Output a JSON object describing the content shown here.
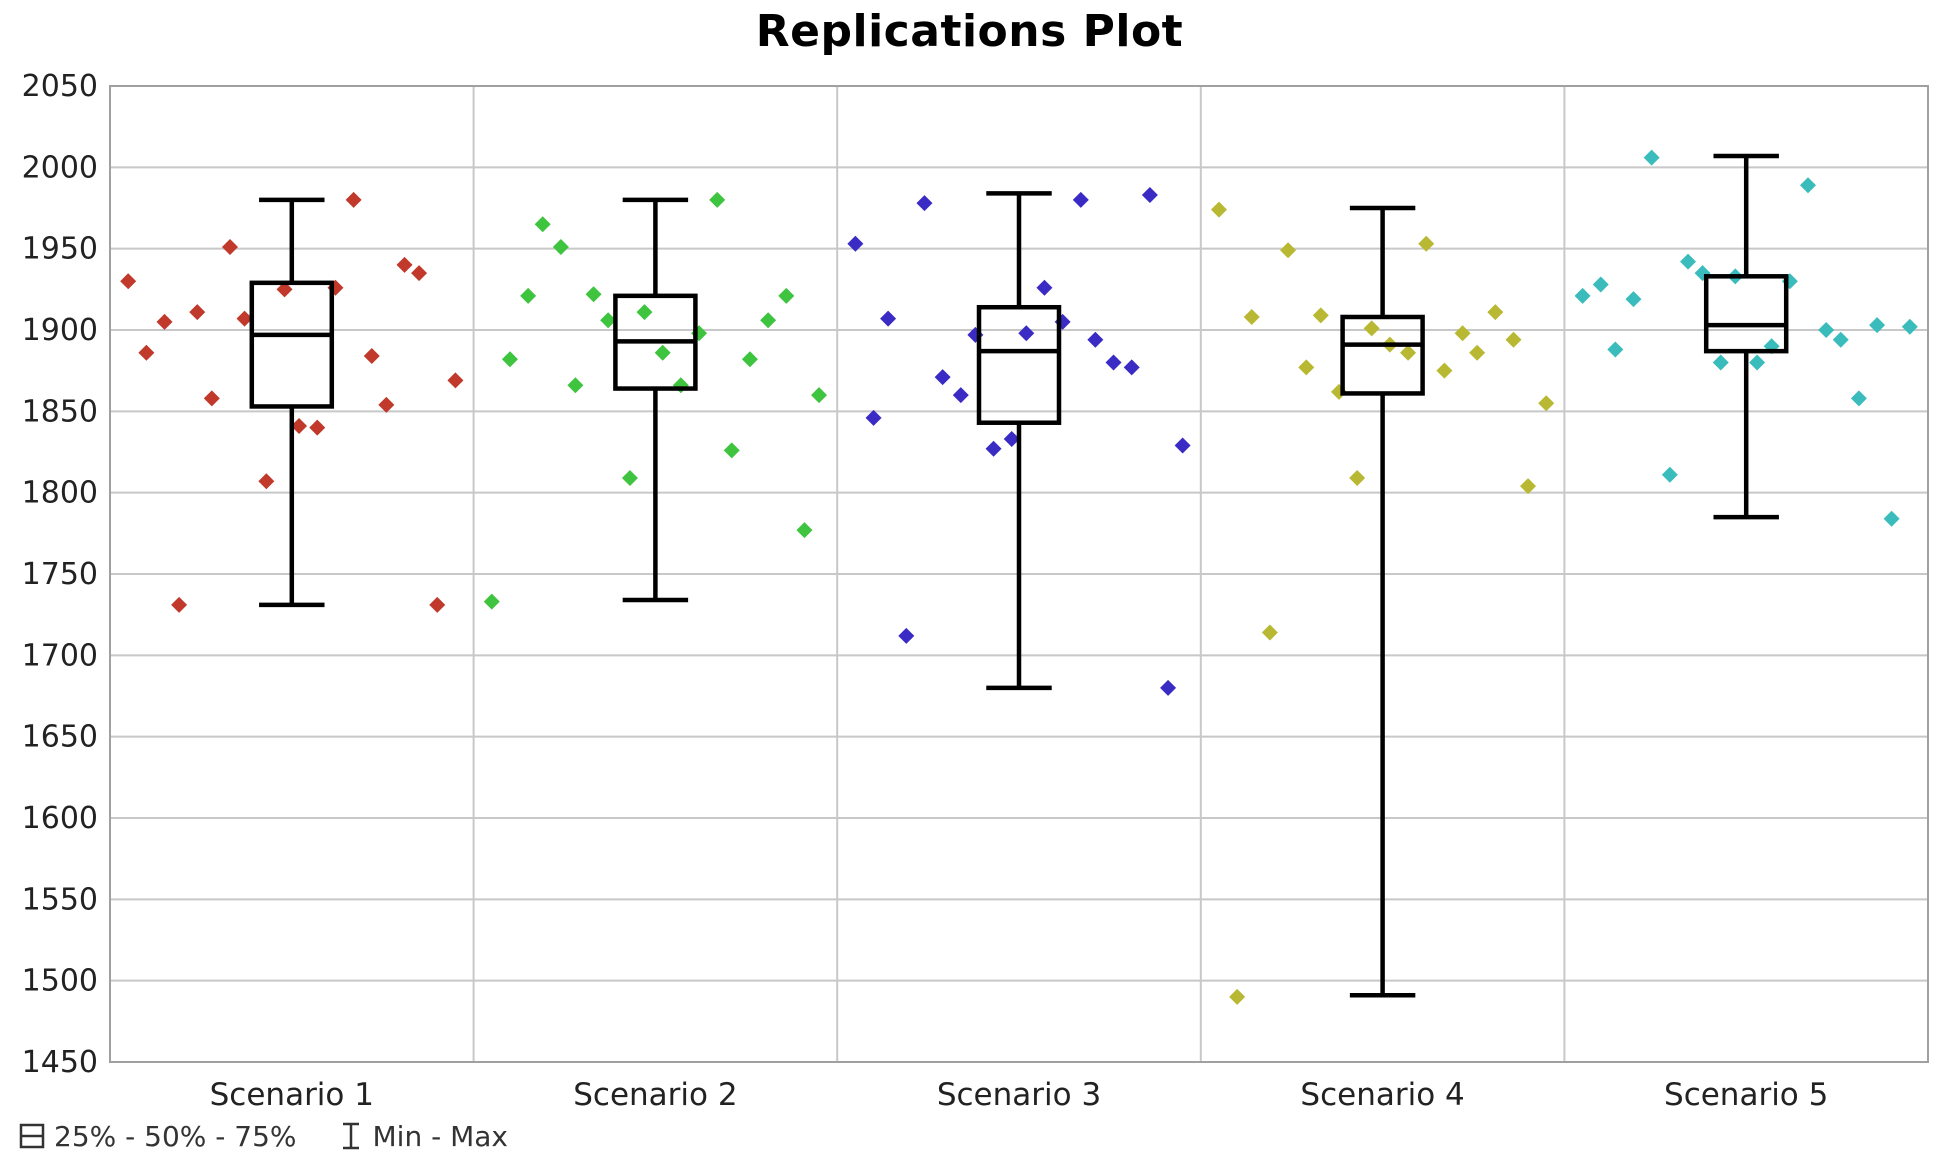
{
  "chart_data": {
    "type": "box",
    "title": "Replications Plot",
    "ylim": [
      1450,
      2050
    ],
    "yticks": [
      "1450",
      "1500",
      "1550",
      "1600",
      "1650",
      "1700",
      "1750",
      "1800",
      "1850",
      "1900",
      "1950",
      "2000",
      "2050"
    ],
    "categories": [
      "Scenario 1",
      "Scenario 2",
      "Scenario 3",
      "Scenario 4",
      "Scenario 5"
    ],
    "grid": true,
    "legend_position": "bottom-left",
    "legend": [
      {
        "symbol": "box-icon",
        "label": "25% - 50% - 75%"
      },
      {
        "symbol": "whisker-icon",
        "label": "Min - Max"
      }
    ],
    "series": [
      {
        "category": "Scenario 1",
        "color": "#c0392b",
        "box": {
          "min": 1731,
          "q1": 1853,
          "median": 1897,
          "q3": 1929,
          "max": 1980
        },
        "points": [
          [
            -0.45,
            1930
          ],
          [
            -0.4,
            1886
          ],
          [
            -0.35,
            1905
          ],
          [
            -0.31,
            1731
          ],
          [
            -0.26,
            1911
          ],
          [
            -0.22,
            1858
          ],
          [
            -0.17,
            1951
          ],
          [
            -0.13,
            1907
          ],
          [
            -0.07,
            1807
          ],
          [
            -0.02,
            1925
          ],
          [
            0.02,
            1841
          ],
          [
            0.07,
            1840
          ],
          [
            0.12,
            1926
          ],
          [
            0.17,
            1980
          ],
          [
            0.22,
            1884
          ],
          [
            0.26,
            1854
          ],
          [
            0.31,
            1940
          ],
          [
            0.35,
            1935
          ],
          [
            0.4,
            1731
          ],
          [
            0.45,
            1869
          ]
        ]
      },
      {
        "category": "Scenario 2",
        "color": "#3ec43e",
        "box": {
          "min": 1734,
          "q1": 1864,
          "median": 1893,
          "q3": 1921,
          "max": 1980
        },
        "points": [
          [
            -0.45,
            1733
          ],
          [
            -0.4,
            1882
          ],
          [
            -0.35,
            1921
          ],
          [
            -0.31,
            1965
          ],
          [
            -0.26,
            1951
          ],
          [
            -0.22,
            1866
          ],
          [
            -0.17,
            1922
          ],
          [
            -0.13,
            1906
          ],
          [
            -0.07,
            1809
          ],
          [
            -0.03,
            1911
          ],
          [
            0.02,
            1886
          ],
          [
            0.07,
            1866
          ],
          [
            0.12,
            1898
          ],
          [
            0.17,
            1980
          ],
          [
            0.21,
            1826
          ],
          [
            0.26,
            1882
          ],
          [
            0.31,
            1906
          ],
          [
            0.36,
            1921
          ],
          [
            0.41,
            1777
          ],
          [
            0.45,
            1860
          ]
        ]
      },
      {
        "category": "Scenario 3",
        "color": "#3a2bc4",
        "box": {
          "min": 1680,
          "q1": 1843,
          "median": 1887,
          "q3": 1914,
          "max": 1984
        },
        "points": [
          [
            -0.45,
            1953
          ],
          [
            -0.4,
            1846
          ],
          [
            -0.36,
            1907
          ],
          [
            -0.31,
            1712
          ],
          [
            -0.26,
            1978
          ],
          [
            -0.21,
            1871
          ],
          [
            -0.16,
            1860
          ],
          [
            -0.12,
            1897
          ],
          [
            -0.07,
            1827
          ],
          [
            -0.02,
            1833
          ],
          [
            0.02,
            1898
          ],
          [
            0.07,
            1926
          ],
          [
            0.12,
            1905
          ],
          [
            0.17,
            1980
          ],
          [
            0.21,
            1894
          ],
          [
            0.26,
            1880
          ],
          [
            0.31,
            1877
          ],
          [
            0.36,
            1983
          ],
          [
            0.41,
            1680
          ],
          [
            0.45,
            1829
          ]
        ]
      },
      {
        "category": "Scenario 4",
        "color": "#b8b832",
        "box": {
          "min": 1491,
          "q1": 1861,
          "median": 1891,
          "q3": 1908,
          "max": 1975
        },
        "points": [
          [
            -0.45,
            1974
          ],
          [
            -0.4,
            1490
          ],
          [
            -0.36,
            1908
          ],
          [
            -0.31,
            1714
          ],
          [
            -0.26,
            1949
          ],
          [
            -0.21,
            1877
          ],
          [
            -0.17,
            1909
          ],
          [
            -0.12,
            1862
          ],
          [
            -0.07,
            1809
          ],
          [
            -0.03,
            1901
          ],
          [
            0.02,
            1891
          ],
          [
            0.07,
            1886
          ],
          [
            0.12,
            1953
          ],
          [
            0.17,
            1875
          ],
          [
            0.22,
            1898
          ],
          [
            0.26,
            1886
          ],
          [
            0.31,
            1911
          ],
          [
            0.36,
            1894
          ],
          [
            0.4,
            1804
          ],
          [
            0.45,
            1855
          ]
        ]
      },
      {
        "category": "Scenario 5",
        "color": "#3bbcbc",
        "box": {
          "min": 1785,
          "q1": 1887,
          "median": 1903,
          "q3": 1933,
          "max": 2007
        },
        "points": [
          [
            -0.45,
            1921
          ],
          [
            -0.4,
            1928
          ],
          [
            -0.36,
            1888
          ],
          [
            -0.31,
            1919
          ],
          [
            -0.26,
            2006
          ],
          [
            -0.21,
            1811
          ],
          [
            -0.16,
            1942
          ],
          [
            -0.12,
            1935
          ],
          [
            -0.07,
            1880
          ],
          [
            -0.03,
            1933
          ],
          [
            0.03,
            1880
          ],
          [
            0.07,
            1890
          ],
          [
            0.12,
            1930
          ],
          [
            0.17,
            1989
          ],
          [
            0.22,
            1900
          ],
          [
            0.26,
            1894
          ],
          [
            0.31,
            1858
          ],
          [
            0.36,
            1903
          ],
          [
            0.4,
            1784
          ],
          [
            0.45,
            1902
          ]
        ]
      }
    ]
  }
}
